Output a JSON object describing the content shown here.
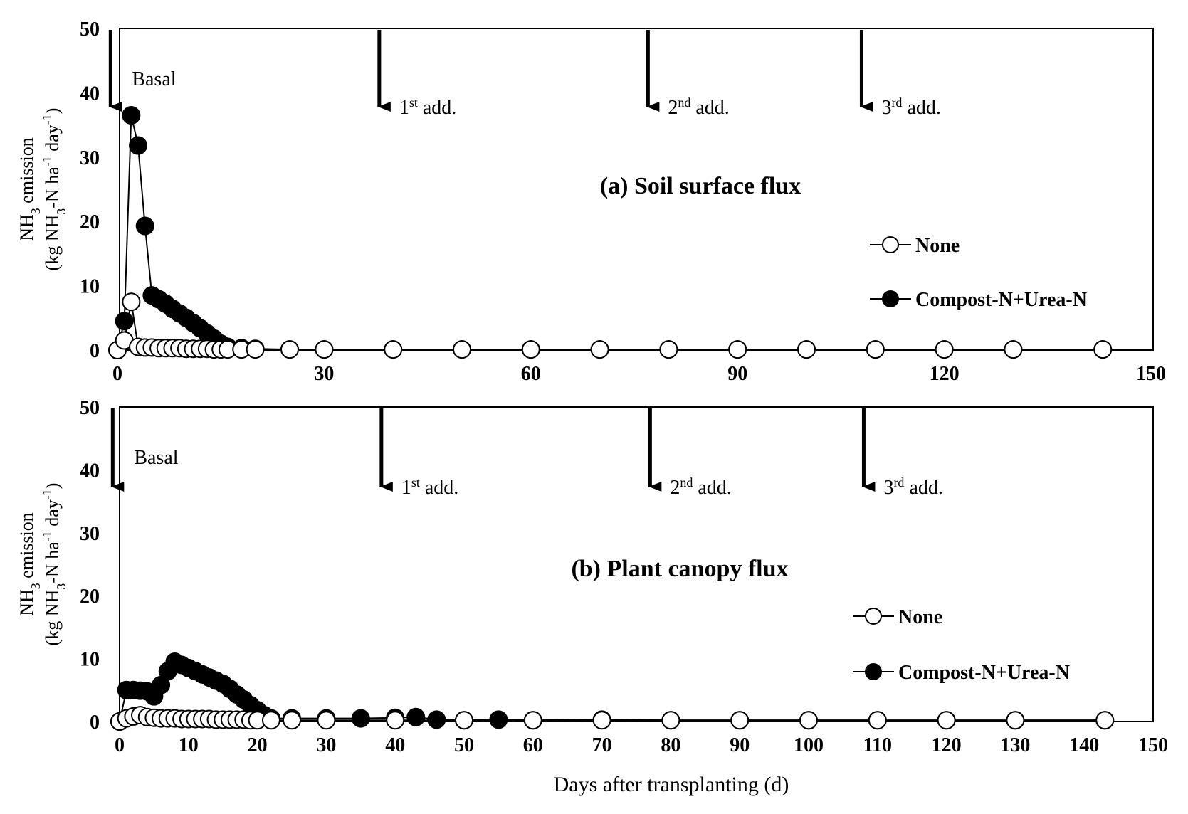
{
  "chart_data": [
    {
      "type": "line",
      "title": "(a) Soil surface flux",
      "xlabel": "",
      "ylabel": "NH3 emission (kg NH3-N ha-1 day-1)",
      "ylabel_line1_base": "NH",
      "ylabel_line1_sub": "3",
      "ylabel_line1_rest": " emission",
      "ylabel_line2_a": "(kg NH",
      "ylabel_line2_sub": "3",
      "ylabel_line2_b": "-N ha",
      "ylabel_line2_sup1": "-1",
      "ylabel_line2_c": " day",
      "ylabel_line2_sup2": "-1",
      "ylabel_line2_d": ")",
      "xlim": [
        0,
        150
      ],
      "ylim": [
        0,
        50
      ],
      "x_ticks": [
        0,
        30,
        60,
        90,
        120,
        150
      ],
      "y_ticks": [
        0,
        10,
        20,
        30,
        40,
        50
      ],
      "legend_position": "right",
      "grid": false,
      "annotations": [
        {
          "x": -1,
          "label": "Basal",
          "sup": "",
          "rest": ""
        },
        {
          "x": 38,
          "label": "1",
          "sup": "st",
          "rest": " add."
        },
        {
          "x": 77,
          "label": "2",
          "sup": "nd",
          "rest": " add."
        },
        {
          "x": 108,
          "label": "3",
          "sup": "rd",
          "rest": " add."
        }
      ],
      "series": [
        {
          "name": "None",
          "marker": "open-circle",
          "x": [
            0,
            1,
            2,
            3,
            4,
            5,
            6,
            7,
            8,
            9,
            10,
            11,
            12,
            13,
            14,
            15,
            16,
            18,
            20,
            25,
            30,
            40,
            50,
            60,
            70,
            80,
            90,
            100,
            110,
            120,
            130,
            143
          ],
          "y": [
            0,
            1.5,
            7.5,
            0.5,
            0.4,
            0.4,
            0.3,
            0.3,
            0.3,
            0.3,
            0.2,
            0.2,
            0.2,
            0.2,
            0.1,
            0.1,
            0.1,
            0.1,
            0.1,
            0.1,
            0.1,
            0.1,
            0.1,
            0.1,
            0.1,
            0.1,
            0.1,
            0.1,
            0.1,
            0.1,
            0.1,
            0.1
          ]
        },
        {
          "name": "Compost-N+Urea-N",
          "marker": "filled-circle",
          "x": [
            0,
            1,
            2,
            3,
            4,
            5,
            6,
            7,
            8,
            9,
            10,
            11,
            12,
            13,
            14,
            15,
            16,
            18,
            20,
            25,
            30,
            40,
            50,
            60,
            70,
            80,
            90,
            100,
            110,
            120,
            130,
            143
          ],
          "y": [
            0,
            4.5,
            36.5,
            31.8,
            19.3,
            8.5,
            7.9,
            7.2,
            6.4,
            5.7,
            5.0,
            4.2,
            3.4,
            2.6,
            1.8,
            1.0,
            0.5,
            0.3,
            0.2,
            0.1,
            0.1,
            0.1,
            0.1,
            0.1,
            0.1,
            0.1,
            0.1,
            0.1,
            0.1,
            0.1,
            0.1,
            0.1
          ]
        }
      ]
    },
    {
      "type": "line",
      "title": "(b) Plant canopy flux",
      "xlabel": "Days after transplanting (d)",
      "ylabel": "NH3 emission (kg NH3-N ha-1 day-1)",
      "ylabel_line1_base": "NH",
      "ylabel_line1_sub": "3",
      "ylabel_line1_rest": " emission",
      "ylabel_line2_a": "(kg NH",
      "ylabel_line2_sub": "3",
      "ylabel_line2_b": "-N ha",
      "ylabel_line2_sup1": "-1",
      "ylabel_line2_c": " day",
      "ylabel_line2_sup2": "-1",
      "ylabel_line2_d": ")",
      "xlim": [
        0,
        150
      ],
      "ylim": [
        0,
        50
      ],
      "x_ticks": [
        0,
        10,
        20,
        30,
        40,
        50,
        60,
        70,
        80,
        90,
        100,
        110,
        120,
        130,
        140,
        150
      ],
      "y_ticks": [
        0,
        10,
        20,
        30,
        40,
        50
      ],
      "legend_position": "right",
      "grid": false,
      "annotations": [
        {
          "x": -1,
          "label": "Basal",
          "sup": "",
          "rest": ""
        },
        {
          "x": 38,
          "label": "1",
          "sup": "st",
          "rest": " add."
        },
        {
          "x": 77,
          "label": "2",
          "sup": "nd",
          "rest": " add."
        },
        {
          "x": 108,
          "label": "3",
          "sup": "rd",
          "rest": " add."
        }
      ],
      "series": [
        {
          "name": "None",
          "marker": "open-circle",
          "x": [
            0,
            1,
            2,
            3,
            4,
            5,
            6,
            7,
            8,
            9,
            10,
            11,
            12,
            13,
            14,
            15,
            16,
            17,
            18,
            19,
            20,
            22,
            25,
            30,
            40,
            50,
            60,
            70,
            80,
            90,
            100,
            110,
            120,
            130,
            143
          ],
          "y": [
            0,
            0.5,
            0.8,
            1.0,
            0.7,
            0.6,
            0.5,
            0.5,
            0.5,
            0.4,
            0.4,
            0.4,
            0.4,
            0.4,
            0.3,
            0.3,
            0.3,
            0.3,
            0.3,
            0.2,
            0.2,
            0.2,
            0.2,
            0.2,
            0.2,
            0.2,
            0.2,
            0.2,
            0.2,
            0.2,
            0.2,
            0.2,
            0.2,
            0.2,
            0.2
          ]
        },
        {
          "name": "Compost-N+Urea-N",
          "marker": "filled-circle",
          "x": [
            0,
            1,
            2,
            3,
            4,
            5,
            6,
            7,
            8,
            9,
            10,
            11,
            12,
            13,
            14,
            15,
            16,
            17,
            18,
            19,
            20,
            21,
            22,
            25,
            30,
            35,
            40,
            43,
            46,
            50,
            55,
            60,
            70,
            80,
            90,
            100,
            110,
            120,
            130,
            143
          ],
          "y": [
            0,
            5.0,
            5.0,
            4.9,
            4.8,
            4.0,
            5.8,
            8.0,
            9.5,
            9.0,
            8.5,
            8.0,
            7.5,
            7.0,
            6.5,
            6.0,
            5.2,
            4.3,
            3.5,
            2.6,
            1.8,
            1.0,
            0.5,
            0.5,
            0.5,
            0.5,
            0.6,
            0.7,
            0.3,
            0.2,
            0.3,
            0.2,
            0.3,
            0.2,
            0.2,
            0.2,
            0.2,
            0.2,
            0.2,
            0.2
          ]
        }
      ]
    }
  ]
}
